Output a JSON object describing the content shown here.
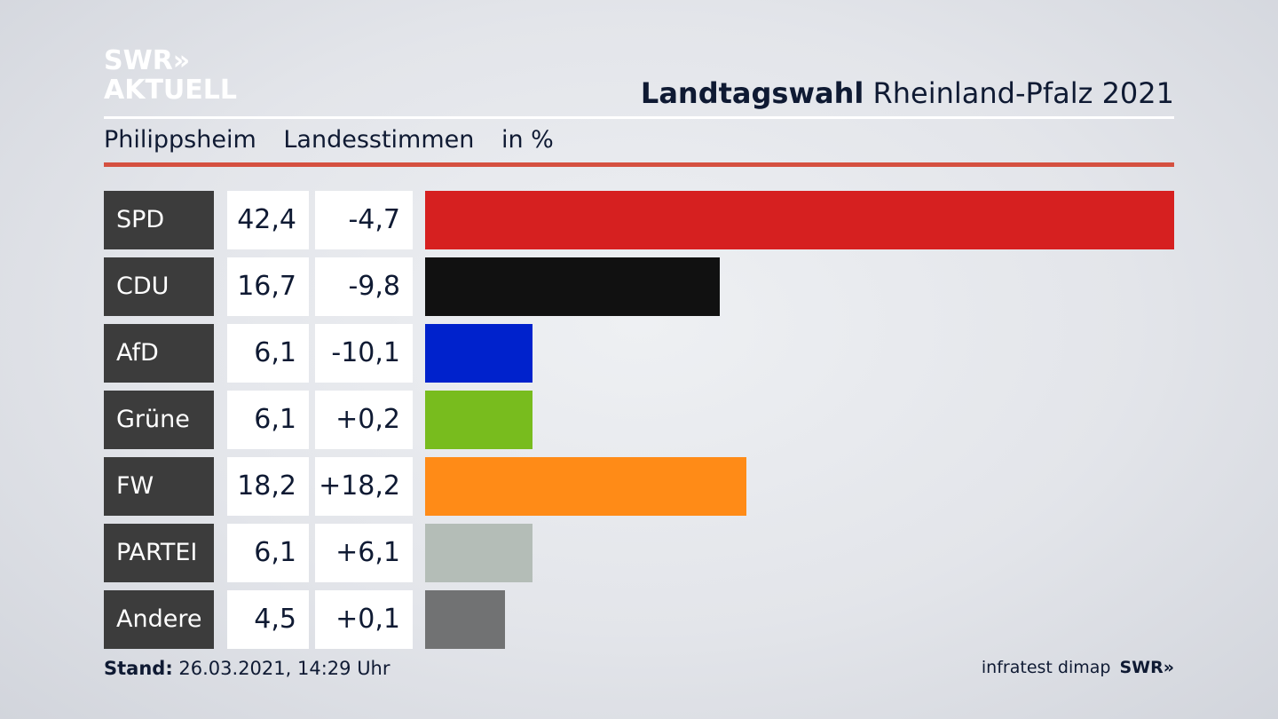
{
  "logo": {
    "line1": "SWR»",
    "line2": "AKTUELL"
  },
  "header": {
    "title_bold": "Landtagswahl",
    "title_rest": "Rheinland-Pfalz 2021"
  },
  "subtitle": {
    "location": "Philippsheim",
    "type": "Landesstimmen",
    "unit": "in %"
  },
  "chart_data": {
    "type": "bar",
    "orientation": "horizontal",
    "categories": [
      "SPD",
      "CDU",
      "AfD",
      "Grüne",
      "FW",
      "PARTEI",
      "Andere"
    ],
    "values": [
      42.4,
      16.7,
      6.1,
      6.1,
      18.2,
      6.1,
      4.5
    ],
    "value_labels": [
      "42,4",
      "16,7",
      "6,1",
      "6,1",
      "18,2",
      "6,1",
      "4,5"
    ],
    "diff_labels": [
      "-4,7",
      "-9,8",
      "-10,1",
      "+0,2",
      "+18,2",
      "+6,1",
      "+0,1"
    ],
    "colors": [
      "#d62020",
      "#111111",
      "#0022cc",
      "#78bc1e",
      "#ff8b17",
      "#b4bdb7",
      "#717273"
    ],
    "xlim": [
      0,
      42.4
    ]
  },
  "footer": {
    "stand_label": "Stand:",
    "stand_value": "26.03.2021, 14:29 Uhr",
    "source": "infratest dimap",
    "brand": "SWR»"
  }
}
